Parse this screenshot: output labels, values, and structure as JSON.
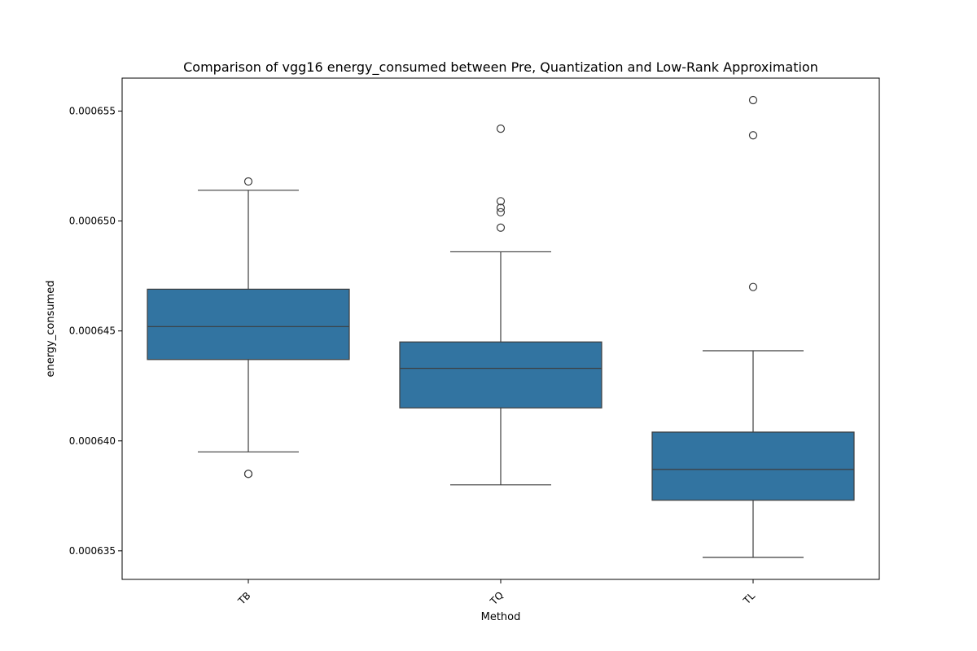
{
  "chart_data": {
    "type": "box",
    "title": "Comparison of vgg16 energy_consumed between Pre, Quantization and Low-Rank Approximation",
    "xlabel": "Method",
    "ylabel": "energy_consumed",
    "ylim": [
      0.0006337,
      0.0006565
    ],
    "yticks": [
      0.000635,
      0.00064,
      0.000645,
      0.00065,
      0.000655
    ],
    "ytick_labels": [
      "0.000635",
      "0.000640",
      "0.000645",
      "0.000650",
      "0.000655"
    ],
    "categories": [
      "TB",
      "TQ",
      "TL"
    ],
    "box_color": "#3274a1",
    "boxes": [
      {
        "category": "TB",
        "whislo": 0.0006395,
        "q1": 0.0006437,
        "med": 0.0006452,
        "q3": 0.0006469,
        "whishi": 0.0006514,
        "fliers": [
          0.0006518,
          0.0006385,
          0.0006385
        ]
      },
      {
        "category": "TQ",
        "whislo": 0.000638,
        "q1": 0.0006415,
        "med": 0.0006433,
        "q3": 0.0006445,
        "whishi": 0.0006486,
        "fliers": [
          0.0006542,
          0.0006509,
          0.0006506,
          0.0006504,
          0.0006497
        ]
      },
      {
        "category": "TL",
        "whislo": 0.0006347,
        "q1": 0.0006373,
        "med": 0.0006387,
        "q3": 0.0006404,
        "whishi": 0.0006441,
        "fliers": [
          0.0006555,
          0.0006539,
          0.000647
        ]
      }
    ],
    "grid": false,
    "legend": "none"
  }
}
